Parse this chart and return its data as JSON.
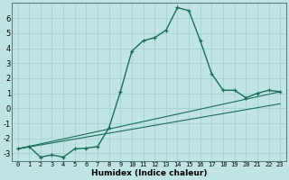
{
  "xlabel": "Humidex (Indice chaleur)",
  "background_color": "#c0e4e4",
  "grid_color": "#a8d4d4",
  "line_color": "#1a6b5a",
  "xlim": [
    -0.5,
    23.5
  ],
  "ylim": [
    -3.5,
    7.0
  ],
  "yticks": [
    -3,
    -2,
    -1,
    0,
    1,
    2,
    3,
    4,
    5,
    6
  ],
  "xticks": [
    0,
    1,
    2,
    3,
    4,
    5,
    6,
    7,
    8,
    9,
    10,
    11,
    12,
    13,
    14,
    15,
    16,
    17,
    18,
    19,
    20,
    21,
    22,
    23
  ],
  "curve1_x": [
    0,
    1,
    2,
    3,
    4,
    5,
    6,
    7,
    8,
    9,
    10,
    11,
    12,
    13,
    14,
    15,
    16,
    17,
    18,
    19,
    20,
    21,
    22,
    23
  ],
  "curve1_y": [
    -2.7,
    -2.55,
    -3.25,
    -3.1,
    -3.25,
    -2.7,
    -2.65,
    -2.55,
    -1.3,
    1.1,
    3.8,
    4.5,
    4.7,
    5.2,
    6.7,
    6.5,
    4.5,
    2.3,
    1.2,
    1.2,
    0.7,
    1.0,
    1.2,
    1.1
  ],
  "curve2_x": [
    0,
    23
  ],
  "curve2_y": [
    -2.7,
    1.1
  ],
  "curve3_x": [
    0,
    23
  ],
  "curve3_y": [
    -2.7,
    0.3
  ]
}
